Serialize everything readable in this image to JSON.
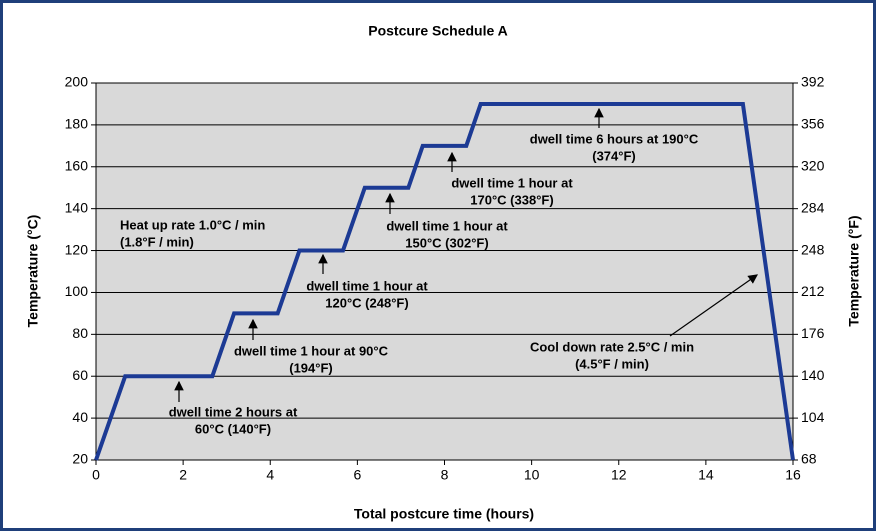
{
  "chart_data": {
    "type": "line",
    "title": "Postcure Schedule A",
    "xlabel": "Total postcure time (hours)",
    "ylabel": "Temperature (°C)",
    "y2label": "Temperature (°F)",
    "x": [
      0,
      0.67,
      2.67,
      3.17,
      4.17,
      4.67,
      5.67,
      6.17,
      7.17,
      7.5,
      8.5,
      8.83,
      14.85,
      16
    ],
    "values": [
      20,
      60,
      60,
      90,
      90,
      120,
      120,
      150,
      150,
      170,
      170,
      190,
      190,
      20
    ],
    "color": "#1c3a94",
    "xlim": [
      0,
      16
    ],
    "xticks": [
      0,
      2,
      4,
      6,
      8,
      10,
      12,
      14,
      16
    ],
    "ylim": [
      20,
      200
    ],
    "yticks": [
      20,
      40,
      60,
      80,
      100,
      120,
      140,
      160,
      180,
      200
    ],
    "y2lim": [
      68,
      392
    ],
    "y2ticks": [
      68,
      104,
      140,
      176,
      212,
      248,
      284,
      320,
      356,
      392
    ],
    "grid": true,
    "annotations": [
      [
        "dwell time 2 hours at",
        "60°C (140°F)"
      ],
      [
        "dwell time 1 hour at 90°C",
        "(194°F)"
      ],
      [
        "dwell time 1 hour at",
        "120°C (248°F)"
      ],
      [
        "dwell time 1 hour at",
        "150°C (302°F)"
      ],
      [
        "dwell time 1 hour at",
        "170°C (338°F)"
      ],
      [
        "dwell time 6 hours at 190°C",
        "(374°F)"
      ],
      [
        "Heat up rate 1.0°C / min",
        "(1.8°F / min)"
      ],
      [
        "Cool down rate 2.5°C / min",
        "(4.5°F / min)"
      ]
    ]
  }
}
